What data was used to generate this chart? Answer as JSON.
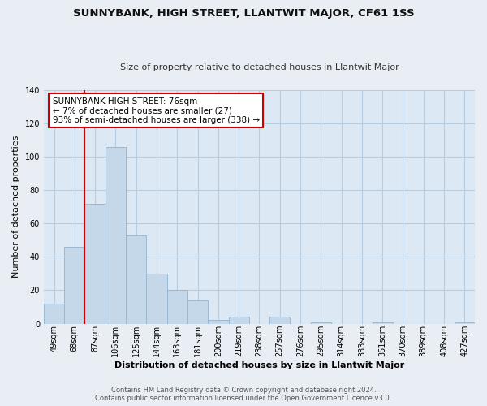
{
  "title": "SUNNYBANK, HIGH STREET, LLANTWIT MAJOR, CF61 1SS",
  "subtitle": "Size of property relative to detached houses in Llantwit Major",
  "xlabel": "Distribution of detached houses by size in Llantwit Major",
  "ylabel": "Number of detached properties",
  "bar_color": "#c5d8ea",
  "bar_edge_color": "#9ab8d0",
  "categories": [
    "49sqm",
    "68sqm",
    "87sqm",
    "106sqm",
    "125sqm",
    "144sqm",
    "163sqm",
    "181sqm",
    "200sqm",
    "219sqm",
    "238sqm",
    "257sqm",
    "276sqm",
    "295sqm",
    "314sqm",
    "333sqm",
    "351sqm",
    "370sqm",
    "389sqm",
    "408sqm",
    "427sqm"
  ],
  "values": [
    12,
    46,
    72,
    106,
    53,
    30,
    20,
    14,
    2,
    4,
    0,
    4,
    0,
    1,
    0,
    0,
    1,
    0,
    0,
    0,
    1
  ],
  "ylim": [
    0,
    140
  ],
  "yticks": [
    0,
    20,
    40,
    60,
    80,
    100,
    120,
    140
  ],
  "annotation_text_line1": "SUNNYBANK HIGH STREET: 76sqm",
  "annotation_text_line2": "← 7% of detached houses are smaller (27)",
  "annotation_text_line3": "93% of semi-detached houses are larger (338) →",
  "marker_bar_index": 1,
  "footer_line1": "Contains HM Land Registry data © Crown copyright and database right 2024.",
  "footer_line2": "Contains public sector information licensed under the Open Government Licence v3.0.",
  "background_color": "#e8eef4",
  "plot_bg_color": "#dce8f4",
  "grid_color": "#b8cce0",
  "annotation_box_color": "#ffffff",
  "annotation_box_edge_color": "#cc0000",
  "marker_line_color": "#cc0000",
  "title_fontsize": 9.5,
  "subtitle_fontsize": 8,
  "axis_label_fontsize": 8,
  "tick_fontsize": 7,
  "annotation_fontsize": 7.5,
  "footer_fontsize": 6
}
